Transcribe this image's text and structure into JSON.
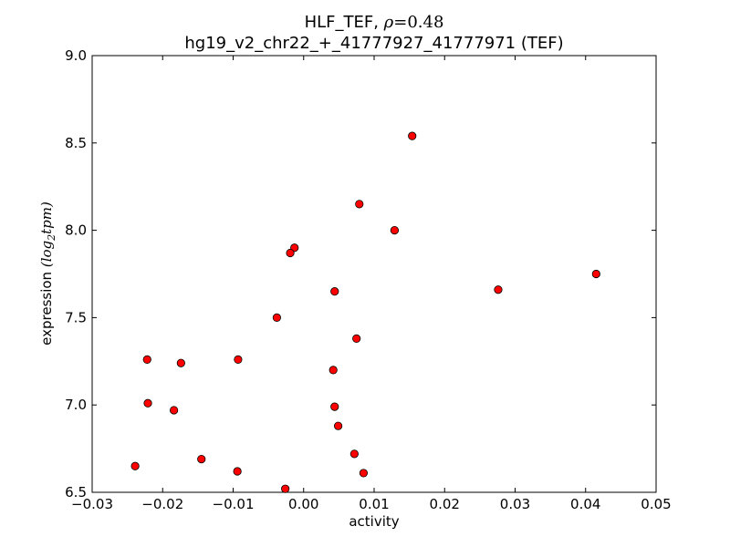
{
  "chart_data": {
    "type": "scatter",
    "title_line1_prefix": "HLF_TEF,",
    "title_line1_rho": "ρ",
    "title_line1_value": "=0.48",
    "title_line2": "hg19_v2_chr22_+_41777927_41777971 (TEF)",
    "xlabel": "activity",
    "ylabel_text": "expression",
    "ylabel_math": "(log",
    "ylabel_sub": "2",
    "ylabel_math_end": "tpm)",
    "xlim": [
      -0.03,
      0.05
    ],
    "ylim": [
      6.5,
      9.0
    ],
    "xticks": [
      -0.03,
      -0.02,
      -0.01,
      0.0,
      0.01,
      0.02,
      0.03,
      0.04,
      0.05
    ],
    "xtick_labels": [
      "−0.03",
      "−0.02",
      "−0.01",
      "0.00",
      "0.01",
      "0.02",
      "0.03",
      "0.04",
      "0.05"
    ],
    "yticks": [
      6.5,
      7.0,
      7.5,
      8.0,
      8.5,
      9.0
    ],
    "ytick_labels": [
      "6.5",
      "7.0",
      "7.5",
      "8.0",
      "8.5",
      "9.0"
    ],
    "grid": false,
    "marker_color": "#ff0000",
    "marker_edge": "#000000",
    "points": [
      {
        "x": 0.0154,
        "y": 8.54
      },
      {
        "x": 0.0079,
        "y": 8.15
      },
      {
        "x": 0.0129,
        "y": 8.0
      },
      {
        "x": -0.0013,
        "y": 7.9
      },
      {
        "x": -0.0019,
        "y": 7.87
      },
      {
        "x": 0.0415,
        "y": 7.75
      },
      {
        "x": 0.0276,
        "y": 7.66
      },
      {
        "x": 0.0044,
        "y": 7.65
      },
      {
        "x": -0.0038,
        "y": 7.5
      },
      {
        "x": 0.0075,
        "y": 7.38
      },
      {
        "x": -0.0093,
        "y": 7.26
      },
      {
        "x": -0.0222,
        "y": 7.26
      },
      {
        "x": -0.0174,
        "y": 7.24
      },
      {
        "x": 0.0042,
        "y": 7.2
      },
      {
        "x": -0.0221,
        "y": 7.01
      },
      {
        "x": 0.0044,
        "y": 6.99
      },
      {
        "x": -0.0184,
        "y": 6.97
      },
      {
        "x": 0.0049,
        "y": 6.88
      },
      {
        "x": 0.0072,
        "y": 6.72
      },
      {
        "x": -0.0145,
        "y": 6.69
      },
      {
        "x": -0.0239,
        "y": 6.65
      },
      {
        "x": -0.0094,
        "y": 6.62
      },
      {
        "x": 0.0085,
        "y": 6.61
      },
      {
        "x": -0.0026,
        "y": 6.52
      }
    ]
  }
}
